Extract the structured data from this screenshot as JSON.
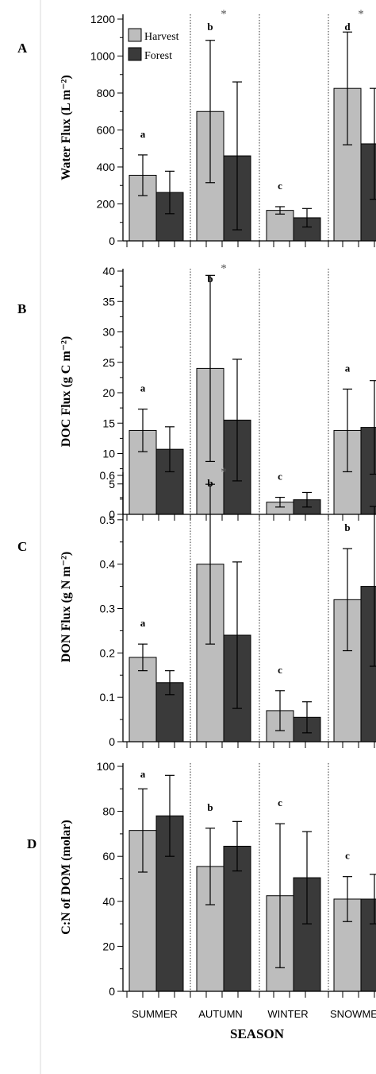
{
  "figure": {
    "xlabel": "SEASON",
    "categories": [
      "SUMMER",
      "AUTUMN",
      "WINTER",
      "SNOWME"
    ],
    "legend": {
      "items": [
        "Harvest",
        "Forest"
      ],
      "position": "top-left"
    },
    "colors": {
      "harvest": "#bdbdbd",
      "forest": "#3a3a3a",
      "axis": "#000000"
    }
  },
  "chart_data": [
    {
      "type": "bar",
      "panel_label": "A",
      "ylabel": "Water Flux (L m⁻²)",
      "ylim": [
        0,
        1200
      ],
      "yticks": [
        0,
        200,
        400,
        600,
        800,
        1000,
        1200
      ],
      "categories": [
        "SUMMER",
        "AUTUMN",
        "WINTER",
        "SNOWME"
      ],
      "series": [
        {
          "name": "Harvest",
          "values": [
            355,
            700,
            165,
            825
          ],
          "errors": [
            110,
            385,
            20,
            305
          ]
        },
        {
          "name": "Forest",
          "values": [
            262,
            460,
            125,
            525
          ],
          "errors": [
            115,
            400,
            50,
            300
          ]
        }
      ],
      "letters": [
        "a",
        "b",
        "c",
        "d"
      ],
      "stars": [
        false,
        true,
        false,
        true
      ],
      "legend": true
    },
    {
      "type": "bar",
      "panel_label": "B",
      "ylabel": "DOC Flux (g C m⁻²)",
      "ylim": [
        0,
        40
      ],
      "yticks": [
        0,
        5,
        10,
        15,
        20,
        25,
        30,
        35,
        40
      ],
      "categories": [
        "SUMMER",
        "AUTUMN",
        "WINTER",
        "SNOWME"
      ],
      "series": [
        {
          "name": "Harvest",
          "values": [
            13.8,
            24,
            2,
            13.8
          ],
          "errors": [
            3.5,
            15.3,
            0.8,
            6.8
          ]
        },
        {
          "name": "Forest",
          "values": [
            10.7,
            15.5,
            2.4,
            14.3
          ],
          "errors": [
            3.7,
            10,
            1.2,
            7.7
          ]
        }
      ],
      "letters": [
        "a",
        "b",
        "c",
        "a"
      ],
      "stars": [
        false,
        true,
        false,
        false
      ],
      "legend": false
    },
    {
      "type": "bar",
      "panel_label": "C",
      "ylabel": "DON Flux (g N m⁻²)",
      "ylim": [
        0,
        0.6
      ],
      "yticks": [
        0,
        0.1,
        0.2,
        0.3,
        0.4,
        0.5,
        0.6
      ],
      "categories": [
        "SUMMER",
        "AUTUMN",
        "WINTER",
        "SNOWME"
      ],
      "series": [
        {
          "name": "Harvest",
          "values": [
            0.19,
            0.4,
            0.07,
            0.32
          ],
          "errors": [
            0.03,
            0.18,
            0.045,
            0.115
          ]
        },
        {
          "name": "Forest",
          "values": [
            0.133,
            0.24,
            0.055,
            0.35
          ],
          "errors": [
            0.027,
            0.165,
            0.035,
            0.18
          ]
        }
      ],
      "letters": [
        "a",
        "b",
        "c",
        "b"
      ],
      "stars": [
        false,
        true,
        false,
        false
      ],
      "legend": false
    },
    {
      "type": "bar",
      "panel_label": "D",
      "ylabel": "C:N of DOM (molar)",
      "ylim": [
        0,
        100
      ],
      "yticks": [
        0,
        20,
        40,
        60,
        80,
        100
      ],
      "categories": [
        "SUMMER",
        "AUTUMN",
        "WINTER",
        "SNOWME"
      ],
      "series": [
        {
          "name": "Harvest",
          "values": [
            71.5,
            55.5,
            42.5,
            41
          ],
          "errors": [
            18.5,
            17,
            32,
            10
          ]
        },
        {
          "name": "Forest",
          "values": [
            78,
            64.5,
            50.5,
            41
          ],
          "errors": [
            18,
            11,
            20.5,
            11
          ]
        }
      ],
      "letters": [
        "a",
        "b",
        "c",
        "c"
      ],
      "stars": [
        false,
        false,
        false,
        false
      ],
      "legend": false
    }
  ]
}
